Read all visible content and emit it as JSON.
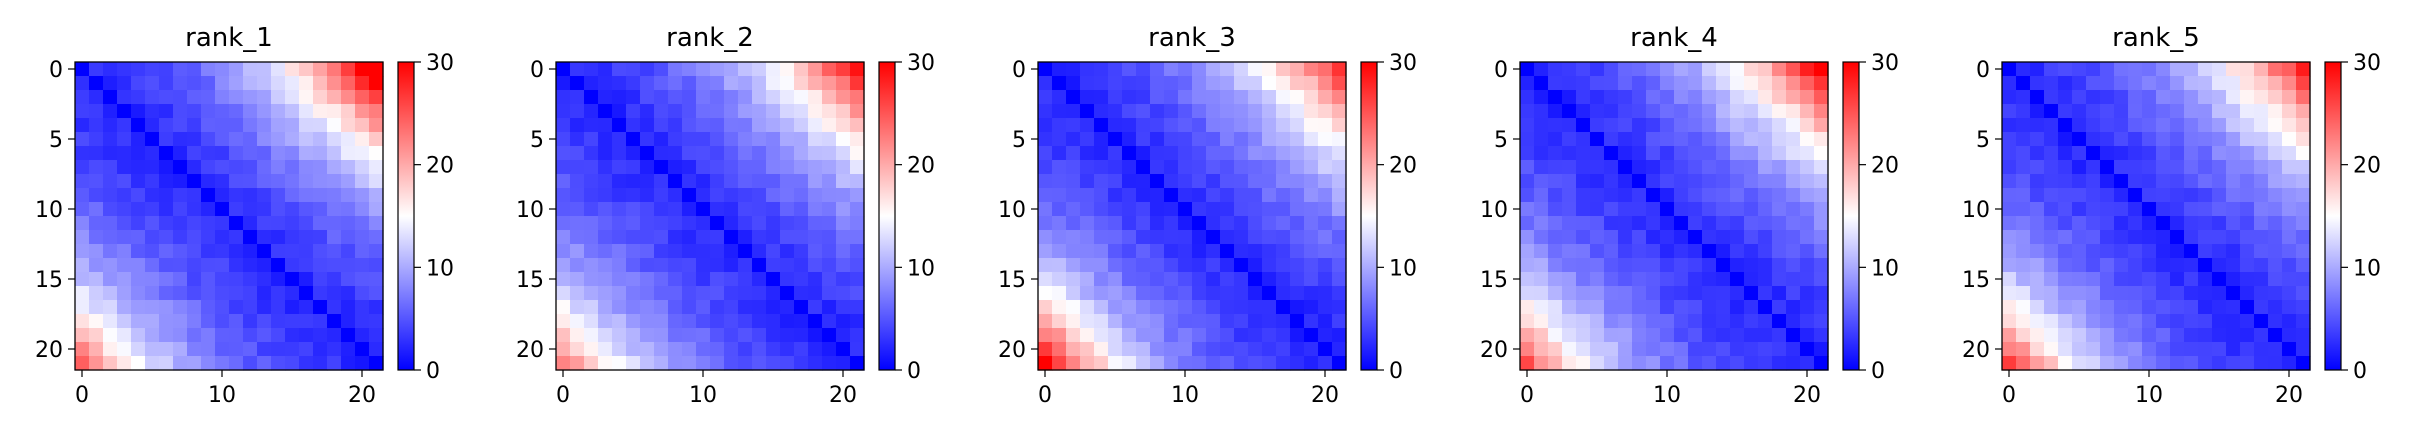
{
  "chart_data": [
    {
      "type": "heatmap",
      "title": "rank_1",
      "size": 22,
      "upper_peak": 28,
      "lower_peak": 20,
      "xticks": [
        0,
        10,
        20
      ],
      "yticks": [
        0,
        5,
        10,
        15,
        20
      ],
      "colorbar": {
        "min": 0,
        "max": 30,
        "ticks": [
          0,
          10,
          20,
          30
        ],
        "colors": [
          "#0000ff",
          "#ffffff",
          "#ff0000"
        ]
      }
    },
    {
      "type": "heatmap",
      "title": "rank_2",
      "size": 22,
      "upper_peak": 24,
      "lower_peak": 19,
      "xticks": [
        0,
        10,
        20
      ],
      "yticks": [
        0,
        5,
        10,
        15,
        20
      ],
      "colorbar": {
        "min": 0,
        "max": 30,
        "ticks": [
          0,
          10,
          20,
          30
        ],
        "colors": [
          "#0000ff",
          "#ffffff",
          "#ff0000"
        ]
      }
    },
    {
      "type": "heatmap",
      "title": "rank_3",
      "size": 22,
      "upper_peak": 22,
      "lower_peak": 26,
      "xticks": [
        0,
        10,
        20
      ],
      "yticks": [
        0,
        5,
        10,
        15,
        20
      ],
      "colorbar": {
        "min": 0,
        "max": 30,
        "ticks": [
          0,
          10,
          20,
          30
        ],
        "colors": [
          "#0000ff",
          "#ffffff",
          "#ff0000"
        ]
      }
    },
    {
      "type": "heatmap",
      "title": "rank_4",
      "size": 22,
      "upper_peak": 25,
      "lower_peak": 21,
      "xticks": [
        0,
        10,
        20
      ],
      "yticks": [
        0,
        5,
        10,
        15,
        20
      ],
      "colorbar": {
        "min": 0,
        "max": 30,
        "ticks": [
          0,
          10,
          20,
          30
        ],
        "colors": [
          "#0000ff",
          "#ffffff",
          "#ff0000"
        ]
      }
    },
    {
      "type": "heatmap",
      "title": "rank_5",
      "size": 22,
      "upper_peak": 23,
      "lower_peak": 22,
      "xticks": [
        0,
        10,
        20
      ],
      "yticks": [
        0,
        5,
        10,
        15,
        20
      ],
      "colorbar": {
        "min": 0,
        "max": 30,
        "ticks": [
          0,
          10,
          20,
          30
        ],
        "colors": [
          "#0000ff",
          "#ffffff",
          "#ff0000"
        ]
      }
    }
  ]
}
